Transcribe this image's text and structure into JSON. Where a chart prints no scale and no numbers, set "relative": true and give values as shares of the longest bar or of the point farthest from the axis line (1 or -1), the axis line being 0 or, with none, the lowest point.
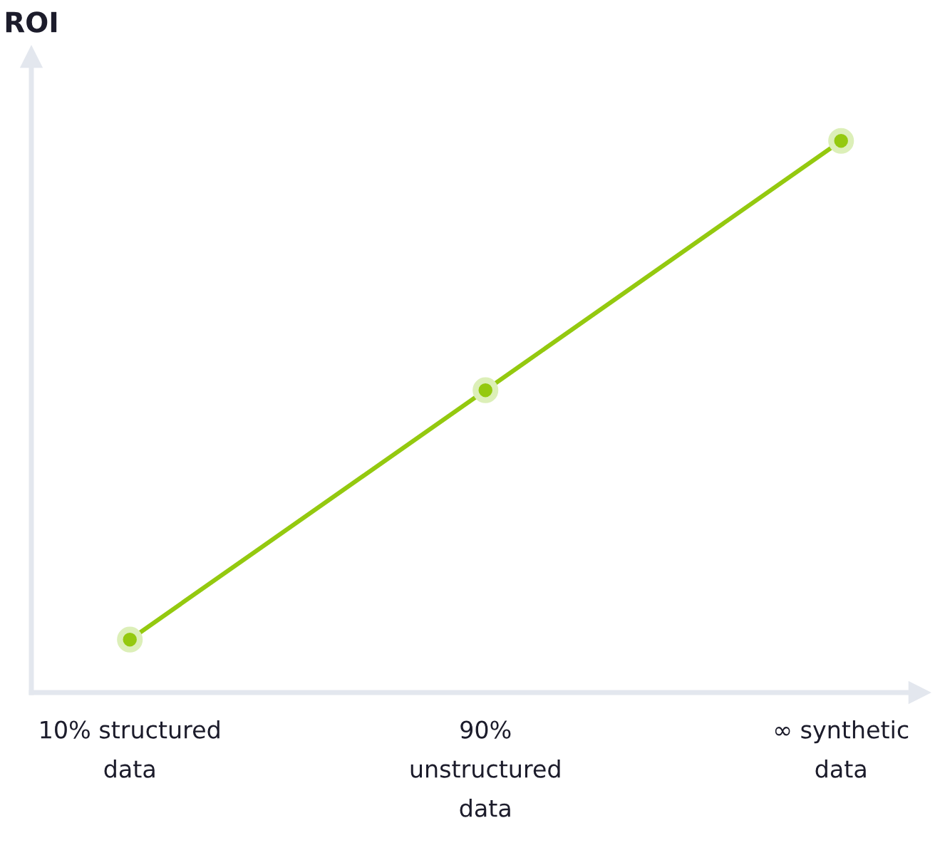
{
  "chart_data": {
    "type": "line",
    "ylabel": "ROI",
    "relative": true,
    "categories": [
      "10% structured\ndata",
      "90%\nunstructured\ndata",
      "∞ synthetic\ndata"
    ],
    "series": [
      {
        "color": "#94c90f",
        "values": [
          0.096,
          0.548,
          1
        ]
      }
    ],
    "marker": "circle",
    "line_style": "solid",
    "grid": false,
    "legend": false
  }
}
